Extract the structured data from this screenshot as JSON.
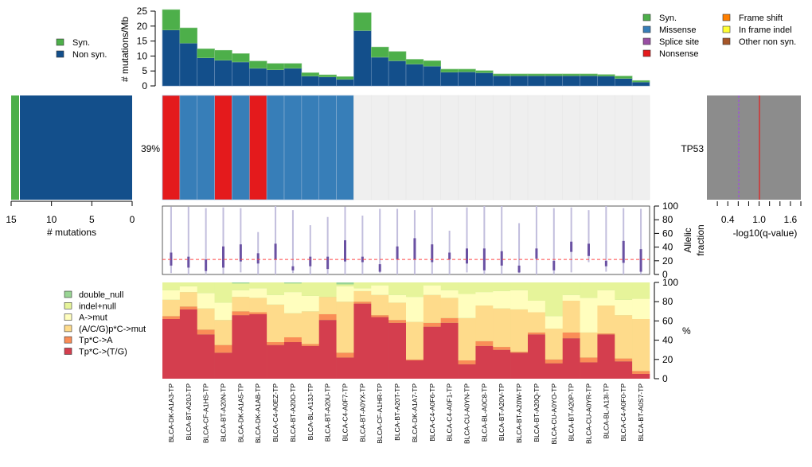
{
  "chart_data": [
    {
      "id": "mutation-rate",
      "type": "bar",
      "stacked": true,
      "ylabel": "# mutations/Mb",
      "ylim": [
        0,
        25
      ],
      "yticks": [
        "0",
        "5",
        "10",
        "15",
        "20",
        "25"
      ],
      "categories": [
        "BLCA-DK-A1A3-TP",
        "BLCA-BT-A20J-TP",
        "BLCA-CF-A1HS-TP",
        "BLCA-BT-A20N-TP",
        "BLCA-DK-A1A5-TP",
        "BLCA-DK-A1AB-TP",
        "BLCA-C4-A0EZ-TP",
        "BLCA-BT-A20O-TP",
        "BLCA-BL-A13J-TP",
        "BLCA-BT-A20U-TP",
        "BLCA-C4-A0F7-TP",
        "BLCA-BT-A0YX-TP",
        "BLCA-CF-A1HR-TP",
        "BLCA-BT-A20T-TP",
        "BLCA-DK-A1A7-TP",
        "BLCA-C4-A0F6-TP",
        "BLCA-C4-A0F1-TP",
        "BLCA-CU-A0YN-TP",
        "BLCA-BL-A0C8-TP",
        "BLCA-BT-A20V-TP",
        "BLCA-BT-A20W-TP",
        "BLCA-BT-A20Q-TP",
        "BLCA-CU-A0YO-TP",
        "BLCA-BT-A20P-TP",
        "BLCA-CU-A0YR-TP",
        "BLCA-BL-A13I-TP",
        "BLCA-C4-A0F0-TP",
        "BLCA-BT-A0S7-TP"
      ],
      "series": [
        {
          "name": "Non syn.",
          "color": "#134f8b",
          "values": [
            18.7,
            14.3,
            9.4,
            8.6,
            8.0,
            5.9,
            5.4,
            5.9,
            3.3,
            3.0,
            2.2,
            18.5,
            9.6,
            8.4,
            7.3,
            6.6,
            4.6,
            4.7,
            4.4,
            3.4,
            3.4,
            3.4,
            3.4,
            3.4,
            3.4,
            3.3,
            2.5,
            1.3
          ]
        },
        {
          "name": "Syn.",
          "color": "#4daf4a",
          "values": [
            6.8,
            5.1,
            3.0,
            3.3,
            2.8,
            2.4,
            2.1,
            1.6,
            1.1,
            0.7,
            0.9,
            6.0,
            3.4,
            3.1,
            1.6,
            1.8,
            1.0,
            0.9,
            0.7,
            0.6,
            0.6,
            0.6,
            0.6,
            0.6,
            0.6,
            0.5,
            0.8,
            0.5
          ]
        }
      ],
      "legend": {
        "position": "left",
        "entries": [
          {
            "label": "Syn.",
            "color": "#4daf4a"
          },
          {
            "label": "Non syn.",
            "color": "#134f8b"
          }
        ]
      }
    },
    {
      "id": "gene-mutation-count",
      "type": "bar",
      "orientation": "horizontal",
      "xlabel": "# mutations",
      "xlim": [
        15,
        0
      ],
      "xticks": [
        "15",
        "10",
        "5",
        "0"
      ],
      "gene": "TP53",
      "series": [
        {
          "name": "Non syn.",
          "color": "#134f8b",
          "values": [
            14
          ]
        },
        {
          "name": "Syn.",
          "color": "#4daf4a",
          "values": [
            1
          ]
        }
      ]
    },
    {
      "id": "oncoprint",
      "type": "heatmap",
      "gene": "TP53",
      "percent_label": "39%",
      "background": "#efefef",
      "cells": [
        "Nonsense",
        "Missense",
        "Missense",
        "Nonsense",
        "Missense",
        "Nonsense",
        "Missense",
        "Missense",
        "Missense",
        "Missense",
        "Missense",
        "",
        "",
        "",
        "",
        "",
        "",
        "",
        "",
        "",
        "",
        "",
        "",
        "",
        "",
        "",
        "",
        ""
      ],
      "legend": {
        "position": "top-right",
        "entries": [
          {
            "label": "Syn.",
            "color": "#4daf4a"
          },
          {
            "label": "Missense",
            "color": "#377eb8"
          },
          {
            "label": "Splice site",
            "color": "#984ea3"
          },
          {
            "label": "Nonsense",
            "color": "#e41a1c"
          },
          {
            "label": "Frame shift",
            "color": "#ff7f00"
          },
          {
            "label": "In frame indel",
            "color": "#ffff33"
          },
          {
            "label": "Other non syn.",
            "color": "#a65628"
          }
        ]
      }
    },
    {
      "id": "qvalue",
      "type": "bar",
      "orientation": "horizontal",
      "xlabel": "-log10(q-value)",
      "xticks": [
        "0.4",
        "1.0",
        "1.6"
      ],
      "xlim": [
        0,
        1.8
      ],
      "gene": "TP53",
      "value": 1.8,
      "bar_color": "#8c8c8c",
      "threshold_line": {
        "value": 1.0,
        "color": "#e41a1c",
        "style": "solid"
      },
      "reference_line": {
        "value": 0.6,
        "color": "#9b59d0",
        "style": "dashed"
      }
    },
    {
      "id": "allelic-fraction",
      "type": "scatter",
      "ylabel": "Allelic fraction",
      "ylim": [
        0,
        100
      ],
      "yticks": [
        "0",
        "20",
        "40",
        "60",
        "80",
        "100"
      ],
      "median_line": 22,
      "ranges": [
        {
          "min": 2,
          "max": 99,
          "q1": 13,
          "q3": 32
        },
        {
          "min": 0,
          "max": 99,
          "q1": 10,
          "q3": 26
        },
        {
          "min": 0,
          "max": 97,
          "q1": 5,
          "q3": 22
        },
        {
          "min": 1,
          "max": 98,
          "q1": 10,
          "q3": 41
        },
        {
          "min": 3,
          "max": 97,
          "q1": 19,
          "q3": 44
        },
        {
          "min": 0,
          "max": 62,
          "q1": 16,
          "q3": 31
        },
        {
          "min": 0,
          "max": 100,
          "q1": 22,
          "q3": 45
        },
        {
          "min": 2,
          "max": 94,
          "q1": 6,
          "q3": 12
        },
        {
          "min": 0,
          "max": 72,
          "q1": 12,
          "q3": 26
        },
        {
          "min": 0,
          "max": 84,
          "q1": 8,
          "q3": 26
        },
        {
          "min": 0,
          "max": 99,
          "q1": 19,
          "q3": 50
        },
        {
          "min": 0,
          "max": 86,
          "q1": 18,
          "q3": 26
        },
        {
          "min": 2,
          "max": 96,
          "q1": 4,
          "q3": 15
        },
        {
          "min": 0,
          "max": 96,
          "q1": 22,
          "q3": 41
        },
        {
          "min": 0,
          "max": 94,
          "q1": 22,
          "q3": 53
        },
        {
          "min": 0,
          "max": 98,
          "q1": 18,
          "q3": 44
        },
        {
          "min": 0,
          "max": 64,
          "q1": 22,
          "q3": 32
        },
        {
          "min": 3,
          "max": 98,
          "q1": 16,
          "q3": 38
        },
        {
          "min": 0,
          "max": 100,
          "q1": 6,
          "q3": 38
        },
        {
          "min": 0,
          "max": 100,
          "q1": 13,
          "q3": 34
        },
        {
          "min": 2,
          "max": 75,
          "q1": 3,
          "q3": 13
        },
        {
          "min": 0,
          "max": 100,
          "q1": 23,
          "q3": 38
        },
        {
          "min": 0,
          "max": 97,
          "q1": 6,
          "q3": 20
        },
        {
          "min": 3,
          "max": 98,
          "q1": 33,
          "q3": 48
        },
        {
          "min": 18,
          "max": 94,
          "q1": 27,
          "q3": 45
        },
        {
          "min": 4,
          "max": 100,
          "q1": 12,
          "q3": 20
        },
        {
          "min": 0,
          "max": 97,
          "q1": 17,
          "q3": 49
        },
        {
          "min": 0,
          "max": 96,
          "q1": 4,
          "q3": 37
        }
      ],
      "colors": {
        "range": "#c2bedd",
        "iqr": "#6a51a3",
        "median_line": "#ff4444"
      }
    },
    {
      "id": "mutation-spectrum",
      "type": "bar",
      "stacked": true,
      "ylabel": "%",
      "ylim": [
        0,
        100
      ],
      "yticks": [
        "0",
        "20",
        "40",
        "60",
        "80",
        "100"
      ],
      "series": [
        {
          "name": "Tp*C->(T/G)",
          "color": "#d43e4e",
          "values": [
            62,
            72,
            46,
            27,
            66,
            67,
            35,
            38,
            34,
            61,
            22,
            78,
            64,
            58,
            19,
            54,
            58,
            15,
            34,
            30,
            27,
            46,
            16,
            42,
            17,
            46,
            18,
            5
          ]
        },
        {
          "name": "Tp*C->A",
          "color": "#fa8d57",
          "values": [
            3,
            3,
            5,
            8,
            4,
            2,
            3,
            5,
            2,
            6,
            5,
            2,
            2,
            3,
            1,
            4,
            5,
            4,
            5,
            3,
            1,
            2,
            4,
            6,
            5,
            1,
            3,
            3
          ]
        },
        {
          "name": "(A/C/G)p*C->mut",
          "color": "#fedb8b",
          "values": [
            17,
            15,
            22,
            26,
            15,
            15,
            39,
            25,
            34,
            18,
            53,
            11,
            21,
            18,
            39,
            29,
            21,
            44,
            37,
            40,
            44,
            21,
            32,
            33,
            26,
            29,
            45,
            54
          ]
        },
        {
          "name": "A->mut",
          "color": "#fffebe",
          "values": [
            10,
            6,
            16,
            18,
            7,
            10,
            10,
            22,
            16,
            0,
            16,
            3,
            10,
            8,
            26,
            10,
            8,
            25,
            14,
            18,
            20,
            12,
            13,
            6,
            36,
            16,
            16,
            21
          ]
        },
        {
          "name": "indel+null",
          "color": "#e6f49a",
          "values": [
            8,
            4,
            11,
            21,
            7,
            6,
            13,
            9,
            14,
            15,
            2,
            6,
            3,
            13,
            15,
            3,
            8,
            12,
            10,
            9,
            8,
            19,
            35,
            13,
            16,
            8,
            18,
            17
          ]
        },
        {
          "name": "double_null",
          "color": "#99d594",
          "values": [
            0,
            0,
            0,
            0,
            1,
            0,
            0,
            1,
            0,
            0,
            2,
            0,
            0,
            0,
            0,
            0,
            0,
            0,
            0,
            0,
            0,
            0,
            0,
            0,
            0,
            0,
            0,
            0
          ]
        }
      ],
      "legend": {
        "position": "left",
        "entries": [
          {
            "label": "double_null",
            "color": "#99d594"
          },
          {
            "label": "indel+null",
            "color": "#e6f49a"
          },
          {
            "label": "A->mut",
            "color": "#fffebe"
          },
          {
            "label": "(A/C/G)p*C->mut",
            "color": "#fedb8b"
          },
          {
            "label": "Tp*C->A",
            "color": "#fa8d57"
          },
          {
            "label": "Tp*C->(T/G)",
            "color": "#d43e4e"
          }
        ]
      }
    }
  ]
}
